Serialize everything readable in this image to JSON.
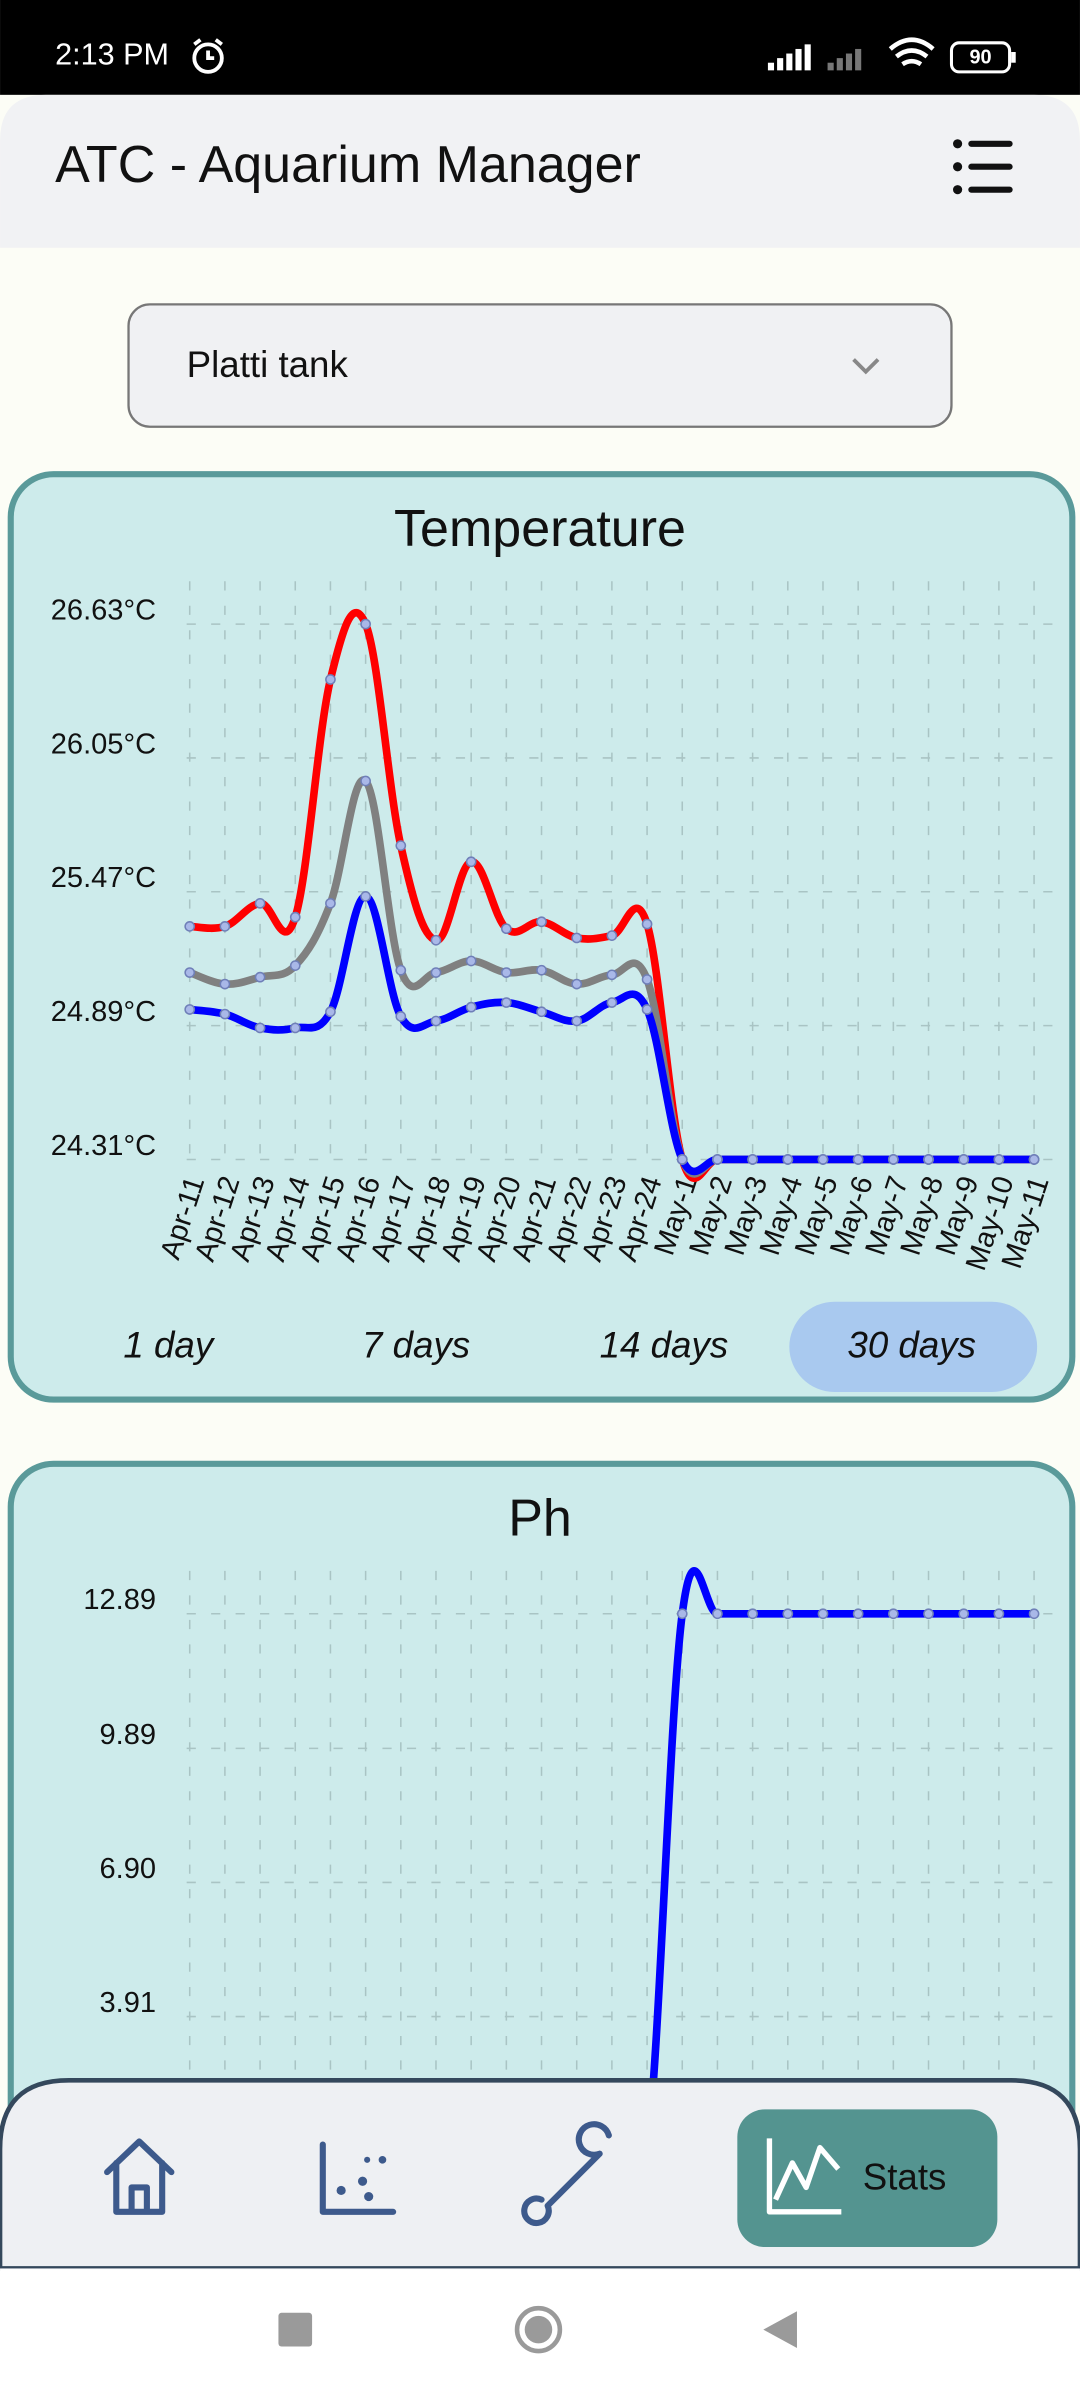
{
  "status_bar": {
    "time": "2:13 PM",
    "battery": "90"
  },
  "header": {
    "title": "ATC - Aquarium Manager"
  },
  "tank_select": {
    "value": "Platti tank"
  },
  "range_selector": {
    "options": [
      "1 day",
      "7 days",
      "14 days",
      "30 days"
    ],
    "selected": 3
  },
  "nav": {
    "active_label": "Stats"
  },
  "chart_data": [
    {
      "type": "line",
      "title": "Temperature",
      "categories": [
        "Apr-11",
        "Apr-12",
        "Apr-13",
        "Apr-14",
        "Apr-15",
        "Apr-16",
        "Apr-17",
        "Apr-18",
        "Apr-19",
        "Apr-20",
        "Apr-21",
        "Apr-22",
        "Apr-23",
        "Apr-24",
        "May-1",
        "May-2",
        "May-3",
        "May-4",
        "May-5",
        "May-6",
        "May-7",
        "May-8",
        "May-9",
        "May-10",
        "May-11"
      ],
      "series": [
        {
          "color": "#ff0000",
          "values": [
            25.32,
            25.32,
            25.42,
            25.36,
            26.39,
            26.63,
            25.67,
            25.26,
            25.6,
            25.31,
            25.34,
            25.27,
            25.28,
            25.33,
            24.31,
            24.31,
            24.31,
            24.31,
            24.31,
            24.31,
            24.31,
            24.31,
            24.31,
            24.31,
            24.31
          ]
        },
        {
          "color": "#808080",
          "values": [
            25.12,
            25.07,
            25.1,
            25.15,
            25.42,
            25.95,
            25.13,
            25.12,
            25.17,
            25.12,
            25.13,
            25.07,
            25.11,
            25.09,
            24.31,
            24.31,
            24.31,
            24.31,
            24.31,
            24.31,
            24.31,
            24.31,
            24.31,
            24.31,
            24.31
          ]
        },
        {
          "color": "#0000ff",
          "values": [
            24.96,
            24.94,
            24.88,
            24.88,
            24.95,
            25.45,
            24.93,
            24.91,
            24.97,
            24.99,
            24.95,
            24.91,
            24.99,
            24.96,
            24.31,
            24.31,
            24.31,
            24.31,
            24.31,
            24.31,
            24.31,
            24.31,
            24.31,
            24.31,
            24.31
          ]
        }
      ],
      "ylim": [
        24.31,
        26.63
      ],
      "yticks": [
        {
          "value": 24.31,
          "label": "24.31°C"
        },
        {
          "value": 24.89,
          "label": "24.89°C"
        },
        {
          "value": 25.47,
          "label": "25.47°C"
        },
        {
          "value": 26.05,
          "label": "26.05°C"
        },
        {
          "value": 26.63,
          "label": "26.63°C"
        }
      ],
      "grid": true
    },
    {
      "type": "line",
      "title": "Ph",
      "series": [
        {
          "color": "#0000ff",
          "values": [
            0.92,
            0.92,
            0.92,
            0.92,
            0.92,
            0.92,
            0.92,
            0.92,
            0.92,
            0.92,
            0.92,
            0.92,
            0.92,
            0.92,
            12.89,
            12.89,
            12.89,
            12.89,
            12.89,
            12.89,
            12.89,
            12.89,
            12.89,
            12.89,
            12.89
          ]
        }
      ],
      "ylim": [
        0.92,
        12.89
      ],
      "yticks": [
        3.91,
        {
          "value": 6.9,
          "label": "6.90"
        },
        9.89,
        12.89
      ],
      "grid": true
    }
  ]
}
